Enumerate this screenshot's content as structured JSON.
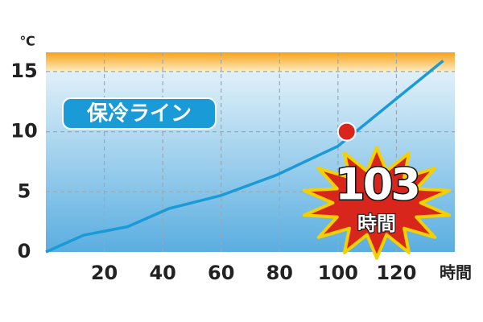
{
  "chart_data": {
    "type": "line",
    "x_unit": "時間",
    "y_unit": "℃",
    "series": [
      {
        "name": "保冷ライン",
        "color": "#1a9ad6",
        "x": [
          0,
          13,
          28,
          42,
          60,
          79,
          100,
          136
        ],
        "values": [
          0,
          1.4,
          2.1,
          3.6,
          4.7,
          6.4,
          8.8,
          15.9
        ]
      }
    ],
    "xlim": [
      0,
      140
    ],
    "xticks": [
      20,
      40,
      60,
      80,
      100,
      120
    ],
    "ylim": [
      0,
      16.6
    ],
    "yticks": [
      0,
      5,
      10,
      15
    ],
    "grid": true,
    "annotation": {
      "value": 103,
      "y": 10,
      "unit": "時間",
      "color": "#d9261c"
    }
  }
}
